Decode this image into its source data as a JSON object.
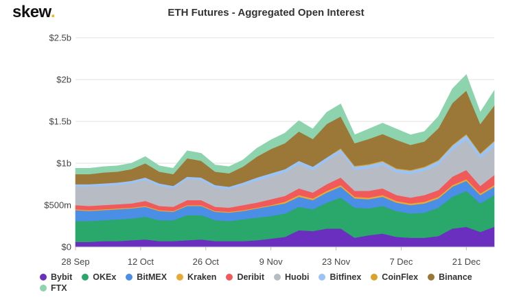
{
  "logo": {
    "text": "skew",
    "dot": "."
  },
  "chart_data": {
    "type": "area",
    "stacked": true,
    "title": "ETH Futures - Aggregated Open Interest",
    "xlabel": "",
    "ylabel": "",
    "ylim": [
      0,
      2.5
    ],
    "y_unit": "billions USD",
    "y_ticks": [
      0,
      0.5,
      1,
      1.5,
      2,
      2.5
    ],
    "y_tick_labels": [
      "$0",
      "$500m",
      "$1b",
      "$1.5b",
      "$2b",
      "$2.5b"
    ],
    "x_start": "2020-09-28",
    "x_end": "2020-12-27",
    "x_ticks": [
      "2020-09-28",
      "2020-10-12",
      "2020-10-26",
      "2020-11-09",
      "2020-11-23",
      "2020-12-07",
      "2020-12-21"
    ],
    "x_tick_labels": [
      "28 Sep",
      "12 Oct",
      "26 Oct",
      "9 Nov",
      "23 Nov",
      "7 Dec",
      "21 Dec"
    ],
    "grid": "horizontal",
    "legend_position": "bottom",
    "x": [
      "2020-09-28",
      "2020-10-01",
      "2020-10-04",
      "2020-10-07",
      "2020-10-10",
      "2020-10-13",
      "2020-10-16",
      "2020-10-19",
      "2020-10-22",
      "2020-10-25",
      "2020-10-28",
      "2020-10-31",
      "2020-11-03",
      "2020-11-06",
      "2020-11-09",
      "2020-11-12",
      "2020-11-15",
      "2020-11-18",
      "2020-11-21",
      "2020-11-24",
      "2020-11-27",
      "2020-11-30",
      "2020-12-03",
      "2020-12-06",
      "2020-12-09",
      "2020-12-12",
      "2020-12-15",
      "2020-12-18",
      "2020-12-21",
      "2020-12-24",
      "2020-12-27"
    ],
    "series": [
      {
        "name": "Bybit",
        "color": "#6b2fbf",
        "values": [
          0.06,
          0.06,
          0.07,
          0.07,
          0.08,
          0.09,
          0.07,
          0.07,
          0.08,
          0.09,
          0.07,
          0.07,
          0.07,
          0.08,
          0.1,
          0.12,
          0.2,
          0.19,
          0.22,
          0.22,
          0.11,
          0.14,
          0.16,
          0.12,
          0.11,
          0.11,
          0.13,
          0.22,
          0.24,
          0.18,
          0.24
        ]
      },
      {
        "name": "OKEx",
        "color": "#2aa76a",
        "values": [
          0.25,
          0.25,
          0.25,
          0.26,
          0.26,
          0.27,
          0.25,
          0.25,
          0.3,
          0.29,
          0.25,
          0.24,
          0.26,
          0.27,
          0.27,
          0.28,
          0.28,
          0.26,
          0.31,
          0.37,
          0.36,
          0.32,
          0.33,
          0.31,
          0.29,
          0.3,
          0.34,
          0.38,
          0.43,
          0.34,
          0.38
        ]
      },
      {
        "name": "BitMEX",
        "color": "#4a8ee6",
        "values": [
          0.13,
          0.12,
          0.12,
          0.12,
          0.12,
          0.12,
          0.11,
          0.1,
          0.11,
          0.11,
          0.1,
          0.1,
          0.1,
          0.11,
          0.12,
          0.12,
          0.12,
          0.11,
          0.12,
          0.13,
          0.11,
          0.11,
          0.11,
          0.1,
          0.1,
          0.11,
          0.11,
          0.12,
          0.12,
          0.1,
          0.1
        ]
      },
      {
        "name": "Kraken",
        "color": "#e8a935",
        "values": [
          0.01,
          0.01,
          0.01,
          0.01,
          0.01,
          0.01,
          0.01,
          0.01,
          0.01,
          0.01,
          0.01,
          0.01,
          0.01,
          0.01,
          0.01,
          0.02,
          0.02,
          0.02,
          0.02,
          0.02,
          0.02,
          0.02,
          0.02,
          0.02,
          0.02,
          0.02,
          0.02,
          0.02,
          0.02,
          0.02,
          0.02
        ]
      },
      {
        "name": "Deribit",
        "color": "#f05a5a",
        "values": [
          0.05,
          0.05,
          0.05,
          0.05,
          0.05,
          0.06,
          0.05,
          0.05,
          0.06,
          0.06,
          0.05,
          0.05,
          0.06,
          0.06,
          0.07,
          0.07,
          0.08,
          0.07,
          0.08,
          0.09,
          0.07,
          0.08,
          0.08,
          0.07,
          0.07,
          0.08,
          0.08,
          0.1,
          0.11,
          0.09,
          0.12
        ]
      },
      {
        "name": "Huobi",
        "color": "#b7bcc4",
        "values": [
          0.22,
          0.23,
          0.23,
          0.23,
          0.24,
          0.25,
          0.24,
          0.22,
          0.25,
          0.24,
          0.23,
          0.22,
          0.24,
          0.26,
          0.27,
          0.28,
          0.29,
          0.27,
          0.28,
          0.3,
          0.25,
          0.27,
          0.28,
          0.27,
          0.28,
          0.29,
          0.3,
          0.32,
          0.36,
          0.33,
          0.34
        ]
      },
      {
        "name": "Bitfinex",
        "color": "#9cc3f5",
        "values": [
          0.03,
          0.03,
          0.03,
          0.03,
          0.03,
          0.03,
          0.03,
          0.03,
          0.03,
          0.03,
          0.03,
          0.03,
          0.03,
          0.04,
          0.04,
          0.04,
          0.04,
          0.04,
          0.04,
          0.04,
          0.04,
          0.04,
          0.04,
          0.04,
          0.04,
          0.04,
          0.05,
          0.05,
          0.06,
          0.05,
          0.06
        ]
      },
      {
        "name": "CoinFlex",
        "color": "#d9a22a",
        "values": [
          0.0,
          0.0,
          0.0,
          0.0,
          0.0,
          0.0,
          0.0,
          0.0,
          0.0,
          0.0,
          0.0,
          0.0,
          0.0,
          0.0,
          0.0,
          0.0,
          0.0,
          0.0,
          0.0,
          0.01,
          0.01,
          0.01,
          0.01,
          0.01,
          0.01,
          0.01,
          0.01,
          0.01,
          0.01,
          0.01,
          0.01
        ]
      },
      {
        "name": "Binance",
        "color": "#9b7838",
        "values": [
          0.12,
          0.12,
          0.13,
          0.13,
          0.14,
          0.17,
          0.14,
          0.14,
          0.22,
          0.2,
          0.16,
          0.16,
          0.19,
          0.25,
          0.29,
          0.31,
          0.35,
          0.33,
          0.4,
          0.38,
          0.27,
          0.3,
          0.32,
          0.34,
          0.3,
          0.3,
          0.38,
          0.5,
          0.52,
          0.35,
          0.42
        ]
      },
      {
        "name": "FTX",
        "color": "#8dd3ad",
        "values": [
          0.07,
          0.07,
          0.07,
          0.07,
          0.07,
          0.08,
          0.07,
          0.07,
          0.09,
          0.09,
          0.08,
          0.08,
          0.08,
          0.1,
          0.11,
          0.12,
          0.13,
          0.12,
          0.14,
          0.15,
          0.1,
          0.12,
          0.13,
          0.13,
          0.12,
          0.12,
          0.14,
          0.17,
          0.19,
          0.14,
          0.18
        ]
      }
    ]
  }
}
